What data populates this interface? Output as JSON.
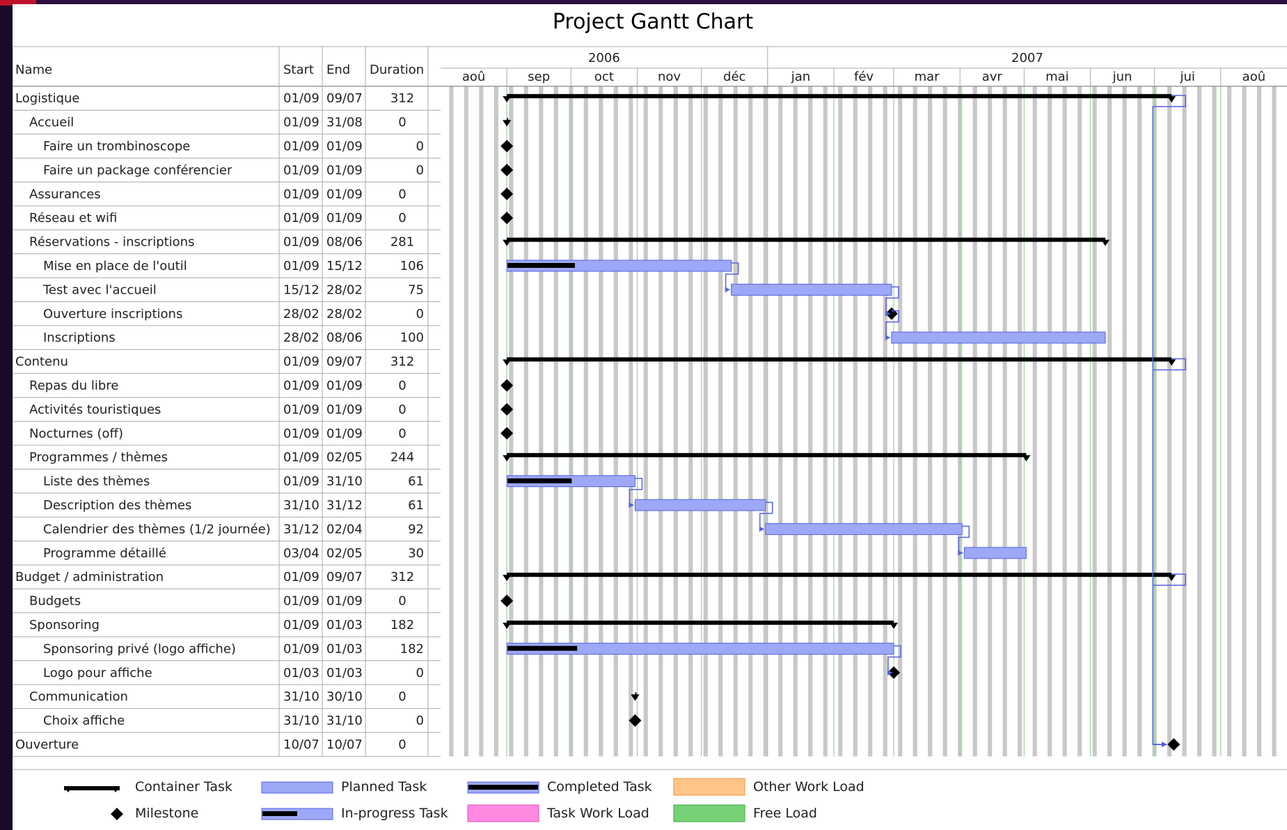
{
  "title": "Project Gantt Chart",
  "columns": {
    "name": "Name",
    "start": "Start",
    "end": "End",
    "duration": "Duration"
  },
  "years": [
    {
      "label": "2006",
      "from": "2006-08-01",
      "to": "2007-01-01"
    },
    {
      "label": "2007",
      "from": "2007-01-01",
      "to": "2007-09-01"
    }
  ],
  "months": [
    {
      "label": "aoû",
      "from": "2006-08-01"
    },
    {
      "label": "sep",
      "from": "2006-09-01"
    },
    {
      "label": "oct",
      "from": "2006-10-01"
    },
    {
      "label": "nov",
      "from": "2006-11-01"
    },
    {
      "label": "déc",
      "from": "2006-12-01"
    },
    {
      "label": "jan",
      "from": "2007-01-01"
    },
    {
      "label": "fév",
      "from": "2007-02-01"
    },
    {
      "label": "mar",
      "from": "2007-03-01"
    },
    {
      "label": "avr",
      "from": "2007-04-01"
    },
    {
      "label": "mai",
      "from": "2007-05-01"
    },
    {
      "label": "jun",
      "from": "2007-06-01"
    },
    {
      "label": "jui",
      "from": "2007-07-01"
    },
    {
      "label": "aoû",
      "from": "2007-08-01"
    }
  ],
  "timeline": {
    "start": "2006-08-01",
    "end": "2007-09-01"
  },
  "chart_data": {
    "type": "gantt",
    "title": "Project Gantt Chart",
    "tasks": [
      {
        "name": "Logistique",
        "level": 0,
        "start": "01/09",
        "end": "09/07",
        "duration": "312",
        "kind": "container",
        "date_start": "2006-09-01",
        "date_end": "2007-07-09",
        "progress": 0
      },
      {
        "name": "Accueil",
        "level": 1,
        "start": "01/09",
        "end": "31/08",
        "duration": "0",
        "kind": "container",
        "date_start": "2006-09-01",
        "date_end": "2006-09-01",
        "progress": 0
      },
      {
        "name": "Faire un trombinoscope",
        "level": 2,
        "start": "01/09",
        "end": "01/09",
        "duration": "0",
        "kind": "milestone",
        "date_start": "2006-09-01",
        "date_end": "2006-09-01",
        "progress": 0
      },
      {
        "name": "Faire un package conférencier",
        "level": 2,
        "start": "01/09",
        "end": "01/09",
        "duration": "0",
        "kind": "milestone",
        "date_start": "2006-09-01",
        "date_end": "2006-09-01",
        "progress": 0
      },
      {
        "name": "Assurances",
        "level": 1,
        "start": "01/09",
        "end": "01/09",
        "duration": "0",
        "kind": "milestone",
        "date_start": "2006-09-01",
        "date_end": "2006-09-01",
        "progress": 0
      },
      {
        "name": "Réseau et wifi",
        "level": 1,
        "start": "01/09",
        "end": "01/09",
        "duration": "0",
        "kind": "milestone",
        "date_start": "2006-09-01",
        "date_end": "2006-09-01",
        "progress": 0
      },
      {
        "name": "Réservations - inscriptions",
        "level": 1,
        "start": "01/09",
        "end": "08/06",
        "duration": "281",
        "kind": "container",
        "date_start": "2006-09-01",
        "date_end": "2007-06-08",
        "progress": 0
      },
      {
        "name": "Mise en place de l'outil",
        "level": 2,
        "start": "01/09",
        "end": "15/12",
        "duration": "106",
        "kind": "task",
        "date_start": "2006-09-01",
        "date_end": "2006-12-15",
        "progress": 0.3
      },
      {
        "name": "Test avec l'accueil",
        "level": 2,
        "start": "15/12",
        "end": "28/02",
        "duration": "75",
        "kind": "task",
        "date_start": "2006-12-15",
        "date_end": "2007-02-28",
        "progress": 0
      },
      {
        "name": "Ouverture inscriptions",
        "level": 2,
        "start": "28/02",
        "end": "28/02",
        "duration": "0",
        "kind": "milestone",
        "date_start": "2007-02-28",
        "date_end": "2007-02-28",
        "progress": 0
      },
      {
        "name": "Inscriptions",
        "level": 2,
        "start": "28/02",
        "end": "08/06",
        "duration": "100",
        "kind": "task",
        "date_start": "2007-02-28",
        "date_end": "2007-06-08",
        "progress": 0
      },
      {
        "name": "Contenu",
        "level": 0,
        "start": "01/09",
        "end": "09/07",
        "duration": "312",
        "kind": "container",
        "date_start": "2006-09-01",
        "date_end": "2007-07-09",
        "progress": 0
      },
      {
        "name": "Repas du libre",
        "level": 1,
        "start": "01/09",
        "end": "01/09",
        "duration": "0",
        "kind": "milestone",
        "date_start": "2006-09-01",
        "date_end": "2006-09-01",
        "progress": 0
      },
      {
        "name": "Activités touristiques",
        "level": 1,
        "start": "01/09",
        "end": "01/09",
        "duration": "0",
        "kind": "milestone",
        "date_start": "2006-09-01",
        "date_end": "2006-09-01",
        "progress": 0
      },
      {
        "name": "Nocturnes (off)",
        "level": 1,
        "start": "01/09",
        "end": "01/09",
        "duration": "0",
        "kind": "milestone",
        "date_start": "2006-09-01",
        "date_end": "2006-09-01",
        "progress": 0
      },
      {
        "name": "Programmes / thèmes",
        "level": 1,
        "start": "01/09",
        "end": "02/05",
        "duration": "244",
        "kind": "container",
        "date_start": "2006-09-01",
        "date_end": "2007-05-02",
        "progress": 0
      },
      {
        "name": "Liste des thèmes",
        "level": 2,
        "start": "01/09",
        "end": "31/10",
        "duration": "61",
        "kind": "task",
        "date_start": "2006-09-01",
        "date_end": "2006-10-31",
        "progress": 0.5
      },
      {
        "name": "Description des thèmes",
        "level": 2,
        "start": "31/10",
        "end": "31/12",
        "duration": "61",
        "kind": "task",
        "date_start": "2006-10-31",
        "date_end": "2006-12-31",
        "progress": 0
      },
      {
        "name": "Calendrier des thèmes (1/2 journée)",
        "level": 2,
        "start": "31/12",
        "end": "02/04",
        "duration": "92",
        "kind": "task",
        "date_start": "2006-12-31",
        "date_end": "2007-04-02",
        "progress": 0
      },
      {
        "name": "Programme détaillé",
        "level": 2,
        "start": "03/04",
        "end": "02/05",
        "duration": "30",
        "kind": "task",
        "date_start": "2007-04-03",
        "date_end": "2007-05-02",
        "progress": 0
      },
      {
        "name": "Budget / administration",
        "level": 0,
        "start": "01/09",
        "end": "09/07",
        "duration": "312",
        "kind": "container",
        "date_start": "2006-09-01",
        "date_end": "2007-07-09",
        "progress": 0
      },
      {
        "name": "Budgets",
        "level": 1,
        "start": "01/09",
        "end": "01/09",
        "duration": "0",
        "kind": "milestone",
        "date_start": "2006-09-01",
        "date_end": "2006-09-01",
        "progress": 0
      },
      {
        "name": "Sponsoring",
        "level": 1,
        "start": "01/09",
        "end": "01/03",
        "duration": "182",
        "kind": "container",
        "date_start": "2006-09-01",
        "date_end": "2007-03-01",
        "progress": 0
      },
      {
        "name": "Sponsoring privé (logo affiche)",
        "level": 2,
        "start": "01/09",
        "end": "01/03",
        "duration": "182",
        "kind": "task",
        "date_start": "2006-09-01",
        "date_end": "2007-03-01",
        "progress": 0.18
      },
      {
        "name": "Logo pour affiche",
        "level": 2,
        "start": "01/03",
        "end": "01/03",
        "duration": "0",
        "kind": "milestone",
        "date_start": "2007-03-01",
        "date_end": "2007-03-01",
        "progress": 0
      },
      {
        "name": "Communication",
        "level": 1,
        "start": "31/10",
        "end": "30/10",
        "duration": "0",
        "kind": "container",
        "date_start": "2006-10-31",
        "date_end": "2006-10-31",
        "progress": 0
      },
      {
        "name": "Choix affiche",
        "level": 2,
        "start": "31/10",
        "end": "31/10",
        "duration": "0",
        "kind": "milestone",
        "date_start": "2006-10-31",
        "date_end": "2006-10-31",
        "progress": 0
      },
      {
        "name": "Ouverture",
        "level": 0,
        "start": "10/07",
        "end": "10/07",
        "duration": "0",
        "kind": "milestone",
        "date_start": "2007-07-10",
        "date_end": "2007-07-10",
        "progress": 0
      }
    ],
    "dependencies": [
      {
        "from": 0,
        "to": 27
      },
      {
        "from": 7,
        "to": 8
      },
      {
        "from": 8,
        "to": 9
      },
      {
        "from": 9,
        "to": 10
      },
      {
        "from": 11,
        "to": 27
      },
      {
        "from": 16,
        "to": 17
      },
      {
        "from": 17,
        "to": 18
      },
      {
        "from": 18,
        "to": 19
      },
      {
        "from": 20,
        "to": 27
      },
      {
        "from": 23,
        "to": 24
      }
    ]
  },
  "legend": [
    {
      "label": "Container Task",
      "swatch": "container"
    },
    {
      "label": "Milestone",
      "swatch": "milestone"
    },
    {
      "label": "Planned Task",
      "swatch": "planned"
    },
    {
      "label": "In-progress Task",
      "swatch": "inprogress"
    },
    {
      "label": "Completed Task",
      "swatch": "completed"
    },
    {
      "label": "Task Work Load",
      "swatch": "taskload"
    },
    {
      "label": "Other Work Load",
      "swatch": "otherload"
    },
    {
      "label": "Free Load",
      "swatch": "freeload"
    }
  ],
  "colors": {
    "container": "#000000",
    "planned_fill": "#9da8f7",
    "planned_stroke": "#5563e0",
    "completed": "#000000",
    "dependency": "#5563e0",
    "stripe": "#c8c8c8",
    "other_load": "#ffc488",
    "task_load": "#ff88e0",
    "free_load": "#77d277",
    "month_line": "#9ad29a",
    "grid": "#aaaaaa"
  }
}
